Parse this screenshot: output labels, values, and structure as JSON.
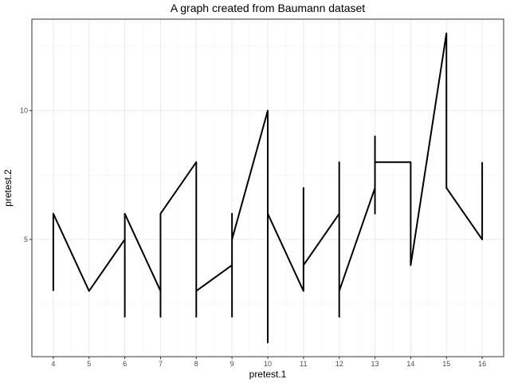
{
  "chart_data": {
    "type": "line",
    "title": "A graph created from Baumann dataset",
    "xlabel": "pretest.1",
    "ylabel": "pretest.2",
    "xlim": [
      3.4,
      16.6
    ],
    "ylim": [
      0.45,
      13.55
    ],
    "x_ticks": [
      4,
      5,
      6,
      7,
      8,
      9,
      10,
      11,
      12,
      13,
      14,
      15,
      16
    ],
    "y_ticks": [
      5,
      10
    ],
    "grid": true,
    "series": [
      {
        "color": "#000000",
        "points": [
          {
            "x": 4,
            "y": 3
          },
          {
            "x": 4,
            "y": 6
          },
          {
            "x": 5,
            "y": 3
          },
          {
            "x": 6,
            "y": 5
          },
          {
            "x": 6,
            "y": 2
          },
          {
            "x": 6,
            "y": 6
          },
          {
            "x": 7,
            "y": 3
          },
          {
            "x": 7,
            "y": 2
          },
          {
            "x": 7,
            "y": 6
          },
          {
            "x": 8,
            "y": 8
          },
          {
            "x": 8,
            "y": 2
          },
          {
            "x": 8,
            "y": 3
          },
          {
            "x": 9,
            "y": 4
          },
          {
            "x": 9,
            "y": 2
          },
          {
            "x": 9,
            "y": 6
          },
          {
            "x": 9,
            "y": 5
          },
          {
            "x": 10,
            "y": 10
          },
          {
            "x": 10,
            "y": 1
          },
          {
            "x": 10,
            "y": 6
          },
          {
            "x": 11,
            "y": 3
          },
          {
            "x": 11,
            "y": 7
          },
          {
            "x": 11,
            "y": 4
          },
          {
            "x": 12,
            "y": 6
          },
          {
            "x": 12,
            "y": 2
          },
          {
            "x": 12,
            "y": 8
          },
          {
            "x": 12,
            "y": 3
          },
          {
            "x": 13,
            "y": 7
          },
          {
            "x": 13,
            "y": 6
          },
          {
            "x": 13,
            "y": 9
          },
          {
            "x": 13,
            "y": 8
          },
          {
            "x": 14,
            "y": 8
          },
          {
            "x": 14,
            "y": 4
          },
          {
            "x": 15,
            "y": 13
          },
          {
            "x": 15,
            "y": 7
          },
          {
            "x": 16,
            "y": 5
          },
          {
            "x": 16,
            "y": 8
          }
        ]
      }
    ]
  }
}
